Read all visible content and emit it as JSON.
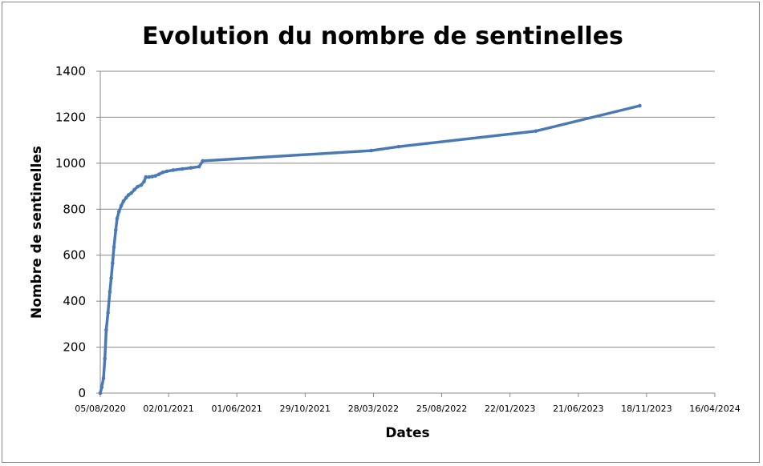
{
  "chart_data": {
    "type": "line",
    "title": "Evolution du nombre de sentinelles",
    "xlabel": "Dates",
    "ylabel": "Nombre de  sentinelles",
    "ylim": [
      0,
      1400
    ],
    "yticks": [
      "0",
      "200",
      "400",
      "600",
      "800",
      "1000",
      "1200",
      "1400"
    ],
    "xlim": [
      "2020-08-05",
      "2024-04-16"
    ],
    "xticks": [
      {
        "date": "2020-08-05",
        "label": "05/08/2020"
      },
      {
        "date": "2021-01-02",
        "label": "02/01/2021"
      },
      {
        "date": "2021-06-01",
        "label": "01/06/2021"
      },
      {
        "date": "2021-10-29",
        "label": "29/10/2021"
      },
      {
        "date": "2022-03-28",
        "label": "28/03/2022"
      },
      {
        "date": "2022-08-25",
        "label": "25/08/2022"
      },
      {
        "date": "2023-01-22",
        "label": "22/01/2023"
      },
      {
        "date": "2023-06-21",
        "label": "21/06/2023"
      },
      {
        "date": "2023-11-18",
        "label": "18/11/2023"
      },
      {
        "date": "2024-04-16",
        "label": "16/04/2024"
      }
    ],
    "grid": true,
    "legend": "none",
    "series_color": "#4a7ab5",
    "points": [
      {
        "x": "2020-08-05",
        "y": 0
      },
      {
        "x": "2020-08-08",
        "y": 25
      },
      {
        "x": "2020-08-12",
        "y": 65
      },
      {
        "x": "2020-08-15",
        "y": 150
      },
      {
        "x": "2020-08-18",
        "y": 275
      },
      {
        "x": "2020-08-22",
        "y": 350
      },
      {
        "x": "2020-08-26",
        "y": 440
      },
      {
        "x": "2020-08-29",
        "y": 500
      },
      {
        "x": "2020-09-01",
        "y": 565
      },
      {
        "x": "2020-09-04",
        "y": 635
      },
      {
        "x": "2020-09-08",
        "y": 710
      },
      {
        "x": "2020-09-11",
        "y": 760
      },
      {
        "x": "2020-09-15",
        "y": 790
      },
      {
        "x": "2020-09-20",
        "y": 815
      },
      {
        "x": "2020-09-25",
        "y": 835
      },
      {
        "x": "2020-10-01",
        "y": 850
      },
      {
        "x": "2020-10-06",
        "y": 862
      },
      {
        "x": "2020-10-12",
        "y": 870
      },
      {
        "x": "2020-10-19",
        "y": 885
      },
      {
        "x": "2020-10-26",
        "y": 898
      },
      {
        "x": "2020-11-03",
        "y": 905
      },
      {
        "x": "2020-11-09",
        "y": 920
      },
      {
        "x": "2020-11-13",
        "y": 940
      },
      {
        "x": "2020-11-20",
        "y": 940
      },
      {
        "x": "2020-11-27",
        "y": 942
      },
      {
        "x": "2020-12-04",
        "y": 945
      },
      {
        "x": "2020-12-12",
        "y": 952
      },
      {
        "x": "2020-12-20",
        "y": 960
      },
      {
        "x": "2020-12-29",
        "y": 965
      },
      {
        "x": "2021-01-12",
        "y": 970
      },
      {
        "x": "2021-02-01",
        "y": 975
      },
      {
        "x": "2021-02-20",
        "y": 980
      },
      {
        "x": "2021-03-10",
        "y": 985
      },
      {
        "x": "2021-03-18",
        "y": 1010
      },
      {
        "x": "2022-03-23",
        "y": 1055
      },
      {
        "x": "2022-05-22",
        "y": 1072
      },
      {
        "x": "2023-03-20",
        "y": 1140
      },
      {
        "x": "2023-11-03",
        "y": 1250
      }
    ]
  }
}
